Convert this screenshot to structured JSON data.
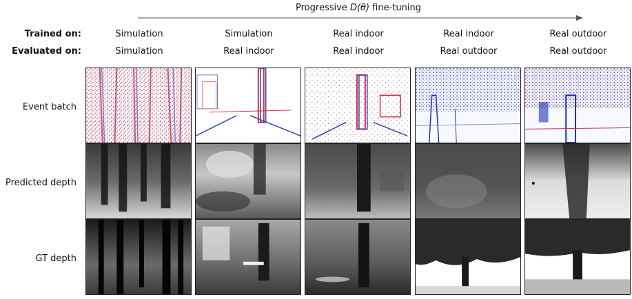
{
  "figure": {
    "progress_title_prefix": "Progressive ",
    "progress_title_math": "D(θ)",
    "progress_title_suffix": " fine-tuning",
    "header_labels": {
      "trained_on": "Trained on:",
      "evaluated_on": "Evaluated on:"
    },
    "columns": [
      {
        "trained_on": "Simulation",
        "evaluated_on": "Simulation"
      },
      {
        "trained_on": "Simulation",
        "evaluated_on": "Real indoor"
      },
      {
        "trained_on": "Real indoor",
        "evaluated_on": "Real indoor"
      },
      {
        "trained_on": "Real indoor",
        "evaluated_on": "Real outdoor"
      },
      {
        "trained_on": "Real outdoor",
        "evaluated_on": "Real outdoor"
      }
    ],
    "rows": [
      {
        "label": "Event batch"
      },
      {
        "label": "Predicted depth"
      },
      {
        "label": "GT depth"
      }
    ]
  }
}
